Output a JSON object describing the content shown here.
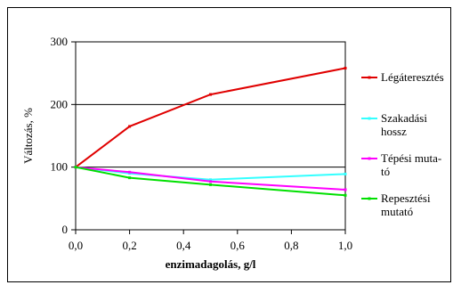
{
  "chart_data": {
    "type": "line",
    "xlabel": "enzimadagolás, g/l",
    "ylabel": "Változás, %",
    "xlim": [
      0,
      1.0
    ],
    "ylim": [
      0,
      300
    ],
    "x": [
      0,
      0.2,
      0.5,
      1.0
    ],
    "x_ticks": [
      "0,0",
      "0,2",
      "0,4",
      "0,6",
      "0,8",
      "1,0"
    ],
    "y_ticks": [
      "0",
      "100",
      "200",
      "300"
    ],
    "grid": "horizontal",
    "legend_position": "right",
    "series": [
      {
        "name": "Légáteresztés",
        "legend_lines": [
          "Légáteresztés"
        ],
        "color": "#e00000",
        "values": [
          100,
          165,
          216,
          258
        ]
      },
      {
        "name": "Szakadási hossz",
        "legend_lines": [
          "Szakadási",
          "hossz"
        ],
        "color": "#33ffff",
        "values": [
          100,
          90,
          80,
          89
        ]
      },
      {
        "name": "Tépési muta-tó",
        "legend_lines": [
          "Tépési muta-",
          "tó"
        ],
        "color": "#ff00ff",
        "values": [
          100,
          92,
          77,
          64
        ]
      },
      {
        "name": "Repesztési mutató",
        "legend_lines": [
          "Repesztési",
          "mutató"
        ],
        "color": "#00e000",
        "values": [
          100,
          83,
          72,
          55
        ]
      }
    ]
  }
}
